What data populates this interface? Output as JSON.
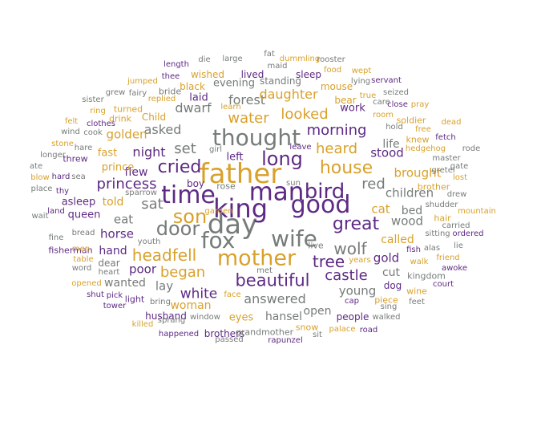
{
  "colors": {
    "purple": "#5e2a84",
    "gold": "#d9a12b",
    "gray": "#767c78"
  },
  "words": [
    {
      "text": "father",
      "weight": 100,
      "color": "gold"
    },
    {
      "text": "day",
      "weight": 100,
      "color": "gray"
    },
    {
      "text": "time",
      "weight": 98,
      "color": "purple"
    },
    {
      "text": "king",
      "weight": 95,
      "color": "purple"
    },
    {
      "text": "man",
      "weight": 92,
      "color": "purple"
    },
    {
      "text": "good",
      "weight": 88,
      "color": "purple"
    },
    {
      "text": "thought",
      "weight": 82,
      "color": "gray"
    },
    {
      "text": "wife",
      "weight": 82,
      "color": "gray"
    },
    {
      "text": "fox",
      "weight": 80,
      "color": "gray"
    },
    {
      "text": "mother",
      "weight": 80,
      "color": "gold"
    },
    {
      "text": "bird",
      "weight": 78,
      "color": "purple"
    },
    {
      "text": "door",
      "weight": 76,
      "color": "gray"
    },
    {
      "text": "son",
      "weight": 72,
      "color": "gold"
    },
    {
      "text": "long",
      "weight": 72,
      "color": "purple"
    },
    {
      "text": "house",
      "weight": 66,
      "color": "gold"
    },
    {
      "text": "great",
      "weight": 66,
      "color": "purple"
    },
    {
      "text": "wolf",
      "weight": 64,
      "color": "gray"
    },
    {
      "text": "cried",
      "weight": 62,
      "color": "purple"
    },
    {
      "text": "beautiful",
      "weight": 62,
      "color": "purple"
    },
    {
      "text": "headfell",
      "weight": 60,
      "color": "gold"
    },
    {
      "text": "tree",
      "weight": 58,
      "color": "purple"
    },
    {
      "text": "princess",
      "weight": 54,
      "color": "purple"
    },
    {
      "text": "sat",
      "weight": 54,
      "color": "gray"
    },
    {
      "text": "began",
      "weight": 54,
      "color": "gold"
    },
    {
      "text": "castle",
      "weight": 52,
      "color": "purple"
    },
    {
      "text": "water",
      "weight": 50,
      "color": "gold"
    },
    {
      "text": "heard",
      "weight": 50,
      "color": "gold"
    },
    {
      "text": "morning",
      "weight": 50,
      "color": "purple"
    },
    {
      "text": "set",
      "weight": 48,
      "color": "gray"
    },
    {
      "text": "looked",
      "weight": 48,
      "color": "gold"
    },
    {
      "text": "red",
      "weight": 48,
      "color": "gray"
    },
    {
      "text": "answered",
      "weight": 48,
      "color": "gray"
    },
    {
      "text": "white",
      "weight": 48,
      "color": "purple"
    },
    {
      "text": "dwarf",
      "weight": 46,
      "color": "gray"
    },
    {
      "text": "night",
      "weight": 46,
      "color": "purple"
    },
    {
      "text": "asked",
      "weight": 44,
      "color": "gray"
    },
    {
      "text": "young",
      "weight": 44,
      "color": "gray"
    },
    {
      "text": "forest",
      "weight": 42,
      "color": "gray"
    },
    {
      "text": "wood",
      "weight": 42,
      "color": "gray"
    },
    {
      "text": "gold",
      "weight": 42,
      "color": "purple"
    },
    {
      "text": "daughter",
      "weight": 40,
      "color": "gold"
    },
    {
      "text": "stood",
      "weight": 40,
      "color": "purple"
    },
    {
      "text": "brought",
      "weight": 40,
      "color": "gold"
    },
    {
      "text": "children",
      "weight": 40,
      "color": "gray"
    },
    {
      "text": "cat",
      "weight": 40,
      "color": "gold"
    },
    {
      "text": "eat",
      "weight": 40,
      "color": "gray"
    },
    {
      "text": "poor",
      "weight": 40,
      "color": "purple"
    },
    {
      "text": "horse",
      "weight": 40,
      "color": "purple"
    },
    {
      "text": "lay",
      "weight": 38,
      "color": "gray"
    },
    {
      "text": "woman",
      "weight": 38,
      "color": "gold"
    },
    {
      "text": "hansel",
      "weight": 38,
      "color": "gray"
    },
    {
      "text": "open",
      "weight": 36,
      "color": "gray"
    },
    {
      "text": "called",
      "weight": 36,
      "color": "gold"
    },
    {
      "text": "cut",
      "weight": 36,
      "color": "gray"
    },
    {
      "text": "golden",
      "weight": 36,
      "color": "gold"
    },
    {
      "text": "told",
      "weight": 36,
      "color": "gold"
    },
    {
      "text": "flew",
      "weight": 36,
      "color": "purple"
    },
    {
      "text": "hand",
      "weight": 34,
      "color": "purple"
    },
    {
      "text": "wanted",
      "weight": 32,
      "color": "gray"
    },
    {
      "text": "life",
      "weight": 32,
      "color": "gray"
    },
    {
      "text": "bed",
      "weight": 32,
      "color": "gray"
    },
    {
      "text": "evening",
      "weight": 30,
      "color": "gray"
    },
    {
      "text": "laid",
      "weight": 30,
      "color": "purple"
    },
    {
      "text": "left",
      "weight": 30,
      "color": "purple"
    },
    {
      "text": "work",
      "weight": 30,
      "color": "purple"
    },
    {
      "text": "eyes",
      "weight": 30,
      "color": "gold"
    },
    {
      "text": "fast",
      "weight": 30,
      "color": "gold"
    },
    {
      "text": "prince",
      "weight": 30,
      "color": "gold"
    },
    {
      "text": "queen",
      "weight": 30,
      "color": "purple"
    },
    {
      "text": "asleep",
      "weight": 30,
      "color": "purple"
    },
    {
      "text": "dear",
      "weight": 26,
      "color": "gray"
    },
    {
      "text": "dog",
      "weight": 26,
      "color": "purple"
    },
    {
      "text": "bear",
      "weight": 26,
      "color": "gold"
    },
    {
      "text": "boy",
      "weight": 26,
      "color": "purple"
    },
    {
      "text": "Child",
      "weight": 26,
      "color": "gold"
    },
    {
      "text": "lived",
      "weight": 24,
      "color": "purple"
    },
    {
      "text": "standing",
      "weight": 24,
      "color": "gray"
    },
    {
      "text": "sleep",
      "weight": 24,
      "color": "purple"
    },
    {
      "text": "black",
      "weight": 24,
      "color": "gold"
    },
    {
      "text": "wished",
      "weight": 24,
      "color": "gold"
    },
    {
      "text": "mouse",
      "weight": 24,
      "color": "gold"
    },
    {
      "text": "people",
      "weight": 24,
      "color": "purple"
    },
    {
      "text": "husband",
      "weight": 24,
      "color": "purple"
    },
    {
      "text": "brothers",
      "weight": 24,
      "color": "purple"
    },
    {
      "text": "knew",
      "weight": 24,
      "color": "gold"
    },
    {
      "text": "drink",
      "weight": 22,
      "color": "gold"
    },
    {
      "text": "turned",
      "weight": 22,
      "color": "gold"
    },
    {
      "text": "bride",
      "weight": 22,
      "color": "gray"
    },
    {
      "text": "light",
      "weight": 22,
      "color": "purple"
    },
    {
      "text": "hair",
      "weight": 22,
      "color": "gold"
    },
    {
      "text": "brother",
      "weight": 22,
      "color": "gold"
    },
    {
      "text": "snow",
      "weight": 22,
      "color": "gold"
    },
    {
      "text": "grandmother",
      "weight": 22,
      "color": "gray"
    },
    {
      "text": "rose",
      "weight": 22,
      "color": "gray"
    },
    {
      "text": "fisherman",
      "weight": 22,
      "color": "purple"
    },
    {
      "text": "kingdom",
      "weight": 22,
      "color": "gray"
    },
    {
      "text": "piece",
      "weight": 22,
      "color": "gold"
    },
    {
      "text": "wine",
      "weight": 22,
      "color": "gold"
    },
    {
      "text": "live",
      "weight": 22,
      "color": "gray"
    },
    {
      "text": "threw",
      "weight": 22,
      "color": "purple"
    },
    {
      "text": "soldier",
      "weight": 22,
      "color": "gold"
    },
    {
      "text": "hare",
      "weight": 20,
      "color": "gray"
    },
    {
      "text": "food",
      "weight": 20,
      "color": "gold"
    },
    {
      "text": "maid",
      "weight": 20,
      "color": "gray"
    },
    {
      "text": "replied",
      "weight": 20,
      "color": "gold"
    },
    {
      "text": "jumped",
      "weight": 20,
      "color": "gold"
    },
    {
      "text": "thee",
      "weight": 20,
      "color": "purple"
    },
    {
      "text": "fairy",
      "weight": 20,
      "color": "gray"
    },
    {
      "text": "lying",
      "weight": 20,
      "color": "gray"
    },
    {
      "text": "true",
      "weight": 20,
      "color": "gold"
    },
    {
      "text": "care",
      "weight": 20,
      "color": "gray"
    },
    {
      "text": "room",
      "weight": 20,
      "color": "gold"
    },
    {
      "text": "gate",
      "weight": 20,
      "color": "gray"
    },
    {
      "text": "lost",
      "weight": 20,
      "color": "gold"
    },
    {
      "text": "master",
      "weight": 20,
      "color": "gray"
    },
    {
      "text": "gretel",
      "weight": 20,
      "color": "gray"
    },
    {
      "text": "hedgehog",
      "weight": 20,
      "color": "gold"
    },
    {
      "text": "girl",
      "weight": 20,
      "color": "gray"
    },
    {
      "text": "sparrow",
      "weight": 20,
      "color": "gray"
    },
    {
      "text": "sun",
      "weight": 20,
      "color": "gray"
    },
    {
      "text": "fetch",
      "weight": 20,
      "color": "purple"
    },
    {
      "text": "fish",
      "weight": 20,
      "color": "purple"
    },
    {
      "text": "alas",
      "weight": 20,
      "color": "gray"
    },
    {
      "text": "friend",
      "weight": 20,
      "color": "gold"
    },
    {
      "text": "carried",
      "weight": 20,
      "color": "gray"
    },
    {
      "text": "sitting",
      "weight": 20,
      "color": "gray"
    },
    {
      "text": "shudder",
      "weight": 20,
      "color": "gray"
    },
    {
      "text": "drew",
      "weight": 20,
      "color": "gray"
    },
    {
      "text": "lie",
      "weight": 20,
      "color": "gray"
    },
    {
      "text": "years",
      "weight": 20,
      "color": "gold"
    },
    {
      "text": "walked",
      "weight": 20,
      "color": "gray"
    },
    {
      "text": "palace",
      "weight": 20,
      "color": "gold"
    },
    {
      "text": "sing",
      "weight": 20,
      "color": "gray"
    },
    {
      "text": "cap",
      "weight": 20,
      "color": "purple"
    },
    {
      "text": "window",
      "weight": 20,
      "color": "gray"
    },
    {
      "text": "face",
      "weight": 20,
      "color": "gold"
    },
    {
      "text": "bring",
      "weight": 20,
      "color": "gray"
    },
    {
      "text": "sprang",
      "weight": 20,
      "color": "gray"
    },
    {
      "text": "killed",
      "weight": 20,
      "color": "gold"
    },
    {
      "text": "happened",
      "weight": 20,
      "color": "purple"
    },
    {
      "text": "passed",
      "weight": 20,
      "color": "gray"
    },
    {
      "text": "rapunzel",
      "weight": 20,
      "color": "purple"
    },
    {
      "text": "met",
      "weight": 20,
      "color": "gray"
    },
    {
      "text": "sit",
      "weight": 20,
      "color": "gray"
    },
    {
      "text": "road",
      "weight": 20,
      "color": "purple"
    },
    {
      "text": "tower",
      "weight": 20,
      "color": "purple"
    },
    {
      "text": "pick",
      "weight": 20,
      "color": "purple"
    },
    {
      "text": "shut",
      "weight": 20,
      "color": "purple"
    },
    {
      "text": "opened",
      "weight": 20,
      "color": "gold"
    },
    {
      "text": "heart",
      "weight": 20,
      "color": "gray"
    },
    {
      "text": "word",
      "weight": 20,
      "color": "gray"
    },
    {
      "text": "table",
      "weight": 20,
      "color": "gold"
    },
    {
      "text": "men",
      "weight": 20,
      "color": "gold"
    },
    {
      "text": "bread",
      "weight": 20,
      "color": "gray"
    },
    {
      "text": "youth",
      "weight": 20,
      "color": "gray"
    },
    {
      "text": "fine",
      "weight": 20,
      "color": "gray"
    },
    {
      "text": "wait",
      "weight": 20,
      "color": "gray"
    },
    {
      "text": "land",
      "weight": 20,
      "color": "purple"
    },
    {
      "text": "thy",
      "weight": 20,
      "color": "purple"
    },
    {
      "text": "place",
      "weight": 20,
      "color": "gray"
    },
    {
      "text": "blow",
      "weight": 20,
      "color": "gold"
    },
    {
      "text": "hard",
      "weight": 20,
      "color": "purple"
    },
    {
      "text": "sea",
      "weight": 20,
      "color": "gray"
    },
    {
      "text": "ate",
      "weight": 20,
      "color": "gray"
    },
    {
      "text": "longer",
      "weight": 20,
      "color": "gray"
    },
    {
      "text": "stone",
      "weight": 20,
      "color": "gold"
    },
    {
      "text": "wind",
      "weight": 20,
      "color": "gray"
    },
    {
      "text": "felt",
      "weight": 20,
      "color": "gold"
    },
    {
      "text": "cook",
      "weight": 20,
      "color": "gray"
    },
    {
      "text": "clothes",
      "weight": 20,
      "color": "purple"
    },
    {
      "text": "ring",
      "weight": 20,
      "color": "gold"
    },
    {
      "text": "sister",
      "weight": 20,
      "color": "gray"
    },
    {
      "text": "grew",
      "weight": 20,
      "color": "gray"
    },
    {
      "text": "length",
      "weight": 20,
      "color": "purple"
    },
    {
      "text": "die",
      "weight": 20,
      "color": "gray"
    },
    {
      "text": "large",
      "weight": 20,
      "color": "gray"
    },
    {
      "text": "fat",
      "weight": 20,
      "color": "gray"
    },
    {
      "text": "dummling",
      "weight": 20,
      "color": "gold"
    },
    {
      "text": "rooster",
      "weight": 20,
      "color": "gray"
    },
    {
      "text": "wept",
      "weight": 20,
      "color": "gold"
    },
    {
      "text": "servant",
      "weight": 20,
      "color": "purple"
    },
    {
      "text": "seized",
      "weight": 20,
      "color": "gray"
    },
    {
      "text": "pray",
      "weight": 20,
      "color": "gold"
    },
    {
      "text": "close",
      "weight": 20,
      "color": "purple"
    },
    {
      "text": "hold",
      "weight": 20,
      "color": "gray"
    },
    {
      "text": "free",
      "weight": 20,
      "color": "gold"
    },
    {
      "text": "dead",
      "weight": 20,
      "color": "gold"
    },
    {
      "text": "rode",
      "weight": 20,
      "color": "gray"
    },
    {
      "text": "mountain",
      "weight": 20,
      "color": "gold"
    },
    {
      "text": "ordered",
      "weight": 20,
      "color": "purple"
    },
    {
      "text": "awoke",
      "weight": 20,
      "color": "purple"
    },
    {
      "text": "court",
      "weight": 20,
      "color": "purple"
    },
    {
      "text": "feet",
      "weight": 20,
      "color": "gray"
    },
    {
      "text": "walk",
      "weight": 20,
      "color": "gold"
    },
    {
      "text": "learn",
      "weight": 20,
      "color": "gold"
    },
    {
      "text": "garden",
      "weight": 20,
      "color": "gold"
    },
    {
      "text": "leave",
      "weight": 20,
      "color": "purple"
    },
    {
      "text": "led",
      "weight": 20,
      "color": "gray"
    },
    {
      "text": "rest",
      "weight": 20,
      "color": "gray"
    }
  ]
}
